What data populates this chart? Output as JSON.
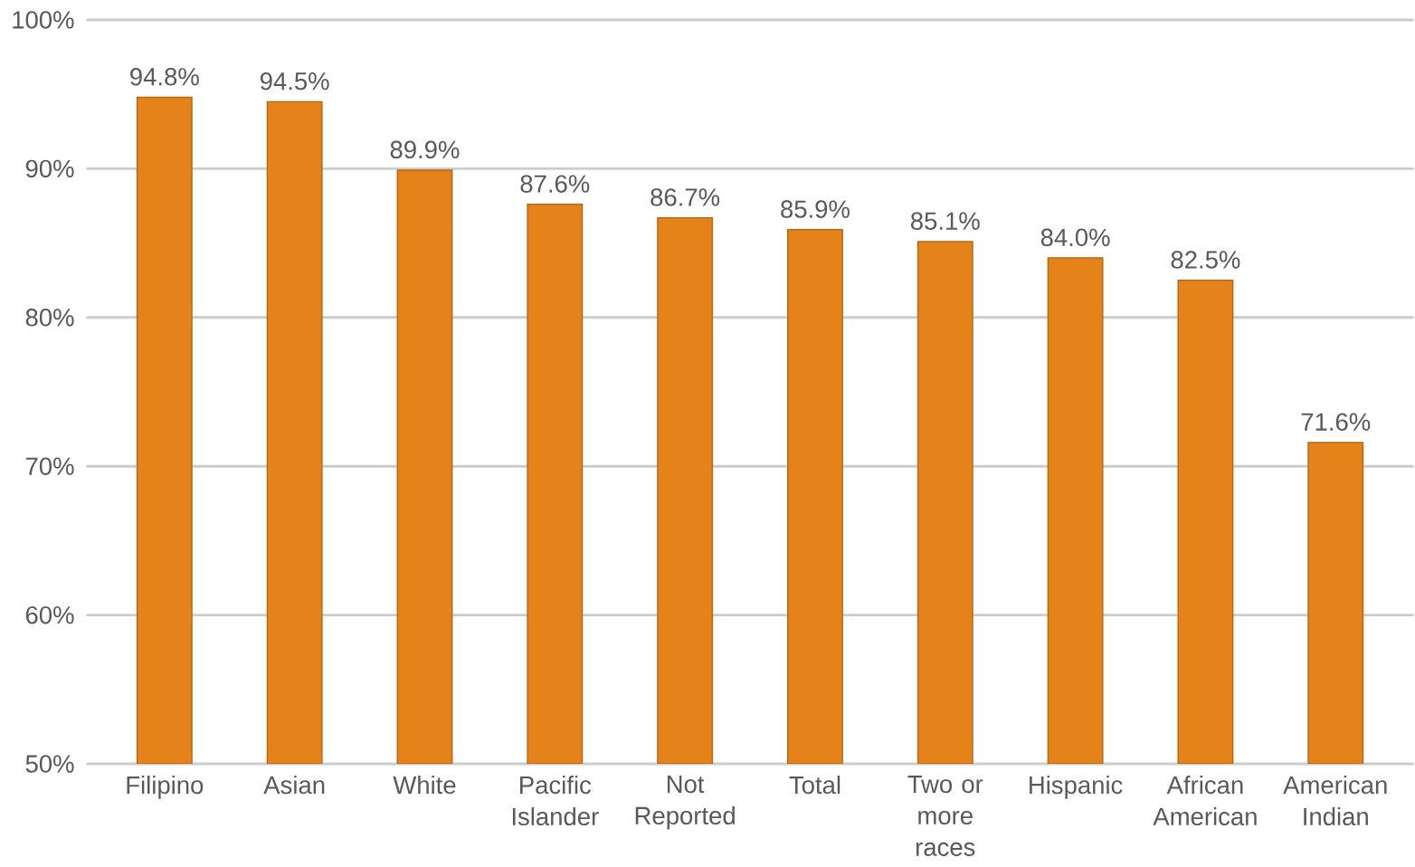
{
  "chart_data": {
    "type": "bar",
    "categories": [
      "Filipino",
      "Asian",
      "White",
      "Pacific Islander",
      "Not Reported",
      "Total",
      "Two or more races",
      "Hispanic",
      "African American",
      "American Indian"
    ],
    "values": [
      94.8,
      94.5,
      89.9,
      87.6,
      86.7,
      85.9,
      85.1,
      84.0,
      82.5,
      71.6
    ],
    "value_labels": [
      "94.8%",
      "94.5%",
      "89.9%",
      "87.6%",
      "86.7%",
      "85.9%",
      "85.1%",
      "84.0%",
      "82.5%",
      "71.6%"
    ],
    "color": "#e6821a",
    "ylim": [
      50,
      100
    ],
    "yticks": [
      {
        "value": 50,
        "label": "50%"
      },
      {
        "value": 60,
        "label": "60%"
      },
      {
        "value": 70,
        "label": "70%"
      },
      {
        "value": 80,
        "label": "80%"
      },
      {
        "value": 90,
        "label": "90%"
      },
      {
        "value": 100,
        "label": "100%"
      }
    ],
    "grid": "y"
  }
}
